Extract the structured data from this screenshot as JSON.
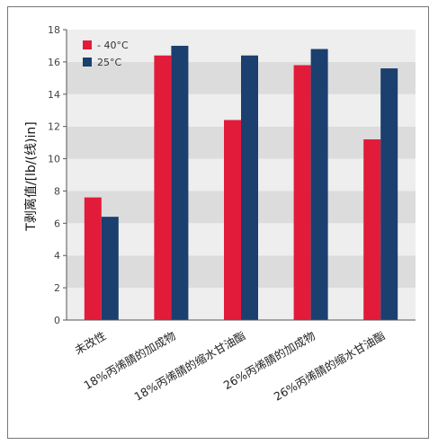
{
  "chart_data": {
    "type": "bar",
    "categories": [
      "未改性",
      "18%丙烯腈的加成物",
      "18%丙烯腈的缩水甘油酯",
      "26%丙烯腈的加成物",
      "26%丙烯腈的缩水甘油酯"
    ],
    "series": [
      {
        "name": "- 40°C",
        "color": "#e31b3a",
        "values": [
          7.6,
          16.4,
          12.4,
          15.8,
          11.2
        ]
      },
      {
        "name": "25°C",
        "color": "#1b3f6e",
        "values": [
          6.4,
          17.0,
          16.4,
          16.8,
          15.6
        ]
      }
    ],
    "ylabel": "T剥离值/[lb/(线)in]",
    "xlabel": "",
    "ylim": [
      0,
      18
    ],
    "yticks": [
      "0",
      "2",
      "4",
      "6",
      "8",
      "10",
      "12",
      "14",
      "16",
      "18"
    ],
    "grid": "alternating horizontal bands",
    "legend": "top-left",
    "band_colors": [
      "#eeeeee",
      "#dcdcdc"
    ]
  }
}
